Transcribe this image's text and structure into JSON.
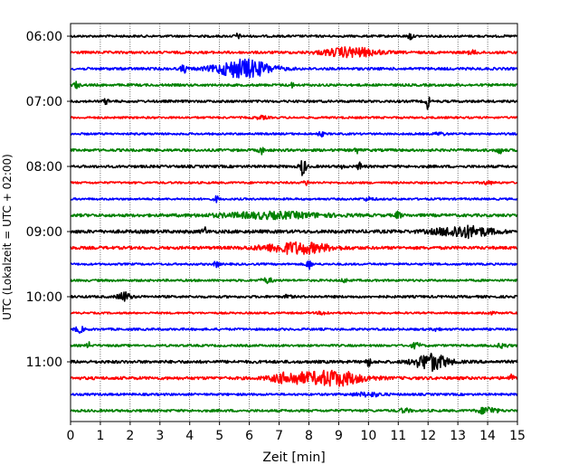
{
  "chart_data": {
    "type": "line",
    "title": "",
    "xlabel": "Zeit  [min]",
    "ylabel": "UTC (Lokalzeit = UTC + 02:00)",
    "xlim": [
      0,
      15
    ],
    "x_ticks": [
      "0",
      "1",
      "2",
      "3",
      "4",
      "5",
      "6",
      "7",
      "8",
      "9",
      "10",
      "11",
      "12",
      "13",
      "14",
      "15"
    ],
    "y_ticks": [
      "06:00",
      "07:00",
      "08:00",
      "09:00",
      "10:00",
      "11:00"
    ],
    "grid": "vertical dotted lines at each minute",
    "trace_colors": [
      "#000000",
      "#ff0000",
      "#0000ff",
      "#008000"
    ],
    "trace_interval_minutes": 15,
    "series": [
      {
        "start": "06:00",
        "noise": 1.2,
        "events": [
          {
            "t": 5.6,
            "a": 2.5,
            "w": 0.1
          },
          {
            "t": 11.4,
            "a": 4,
            "w": 0.08
          }
        ]
      },
      {
        "start": "06:15",
        "noise": 1.4,
        "events": [
          {
            "t": 9.4,
            "a": 5,
            "w": 0.9
          },
          {
            "t": 13.5,
            "a": 1.5,
            "w": 0.2
          }
        ]
      },
      {
        "start": "06:30",
        "noise": 1.4,
        "events": [
          {
            "t": 3.8,
            "a": 4,
            "w": 0.1
          },
          {
            "t": 5.8,
            "a": 10,
            "w": 0.9
          }
        ]
      },
      {
        "start": "06:45",
        "noise": 1.3,
        "events": [
          {
            "t": 0.2,
            "a": 4,
            "w": 0.08
          },
          {
            "t": 7.4,
            "a": 3,
            "w": 0.08
          }
        ]
      },
      {
        "start": "07:00",
        "noise": 1.3,
        "events": [
          {
            "t": 1.2,
            "a": 2.5,
            "w": 0.1
          },
          {
            "t": 12.0,
            "a": 9,
            "w": 0.06
          }
        ]
      },
      {
        "start": "07:15",
        "noise": 1.1,
        "events": [
          {
            "t": 6.4,
            "a": 1.5,
            "w": 0.2
          }
        ]
      },
      {
        "start": "07:30",
        "noise": 1.1,
        "events": [
          {
            "t": 8.4,
            "a": 2.5,
            "w": 0.1
          },
          {
            "t": 12.4,
            "a": 1.5,
            "w": 0.2
          }
        ]
      },
      {
        "start": "07:45",
        "noise": 1.4,
        "events": [
          {
            "t": 6.4,
            "a": 4,
            "w": 0.08
          },
          {
            "t": 9.6,
            "a": 3,
            "w": 0.08
          },
          {
            "t": 14.4,
            "a": 3.5,
            "w": 0.1
          }
        ]
      },
      {
        "start": "08:00",
        "noise": 1.4,
        "events": [
          {
            "t": 7.8,
            "a": 10,
            "w": 0.1
          },
          {
            "t": 9.7,
            "a": 7,
            "w": 0.05
          },
          {
            "t": 9.1,
            "a": 3,
            "w": 0.05
          }
        ]
      },
      {
        "start": "08:15",
        "noise": 1.1,
        "events": [
          {
            "t": 7.9,
            "a": 3,
            "w": 0.08
          },
          {
            "t": 14.0,
            "a": 1.5,
            "w": 0.2
          }
        ]
      },
      {
        "start": "08:30",
        "noise": 1.1,
        "events": [
          {
            "t": 4.9,
            "a": 3,
            "w": 0.08
          },
          {
            "t": 10.0,
            "a": 1.5,
            "w": 0.2
          }
        ]
      },
      {
        "start": "08:45",
        "noise": 1.6,
        "events": [
          {
            "t": 6.8,
            "a": 3,
            "w": 1.8
          },
          {
            "t": 11.0,
            "a": 3.5,
            "w": 0.1
          }
        ]
      },
      {
        "start": "09:00",
        "noise": 1.8,
        "events": [
          {
            "t": 4.5,
            "a": 4,
            "w": 0.08
          },
          {
            "t": 13.2,
            "a": 6,
            "w": 0.9
          }
        ]
      },
      {
        "start": "09:15",
        "noise": 1.6,
        "events": [
          {
            "t": 7.6,
            "a": 6,
            "w": 1.1
          }
        ]
      },
      {
        "start": "09:30",
        "noise": 1.1,
        "events": [
          {
            "t": 4.9,
            "a": 3.5,
            "w": 0.08
          },
          {
            "t": 8.0,
            "a": 5,
            "w": 0.1
          }
        ]
      },
      {
        "start": "09:45",
        "noise": 1.2,
        "events": [
          {
            "t": 6.6,
            "a": 2.5,
            "w": 0.2
          },
          {
            "t": 9.2,
            "a": 2,
            "w": 0.1
          }
        ]
      },
      {
        "start": "10:00",
        "noise": 1.3,
        "events": [
          {
            "t": 1.8,
            "a": 5,
            "w": 0.2
          },
          {
            "t": 7.3,
            "a": 2,
            "w": 0.1
          }
        ]
      },
      {
        "start": "10:15",
        "noise": 1.0,
        "events": [
          {
            "t": 8.5,
            "a": 1.5,
            "w": 0.2
          },
          {
            "t": 14.0,
            "a": 1.5,
            "w": 0.2
          }
        ]
      },
      {
        "start": "10:30",
        "noise": 1.2,
        "events": [
          {
            "t": 0.3,
            "a": 3,
            "w": 0.15
          },
          {
            "t": 12.3,
            "a": 2,
            "w": 0.1
          }
        ]
      },
      {
        "start": "10:45",
        "noise": 1.2,
        "events": [
          {
            "t": 0.6,
            "a": 4,
            "w": 0.05
          },
          {
            "t": 11.6,
            "a": 3,
            "w": 0.15
          },
          {
            "t": 14.5,
            "a": 2,
            "w": 0.2
          }
        ]
      },
      {
        "start": "11:00",
        "noise": 1.6,
        "events": [
          {
            "t": 12.1,
            "a": 9,
            "w": 0.55
          },
          {
            "t": 10.0,
            "a": 4,
            "w": 0.1
          }
        ]
      },
      {
        "start": "11:15",
        "noise": 1.6,
        "events": [
          {
            "t": 8.8,
            "a": 8,
            "w": 1.0
          },
          {
            "t": 7.3,
            "a": 5,
            "w": 0.6
          },
          {
            "t": 14.8,
            "a": 3,
            "w": 0.1
          }
        ]
      },
      {
        "start": "11:30",
        "noise": 1.2,
        "events": [
          {
            "t": 10.0,
            "a": 2,
            "w": 0.5
          }
        ]
      },
      {
        "start": "11:45",
        "noise": 1.3,
        "events": [
          {
            "t": 14.0,
            "a": 4,
            "w": 0.3
          },
          {
            "t": 11.2,
            "a": 2,
            "w": 0.2
          }
        ]
      }
    ]
  }
}
